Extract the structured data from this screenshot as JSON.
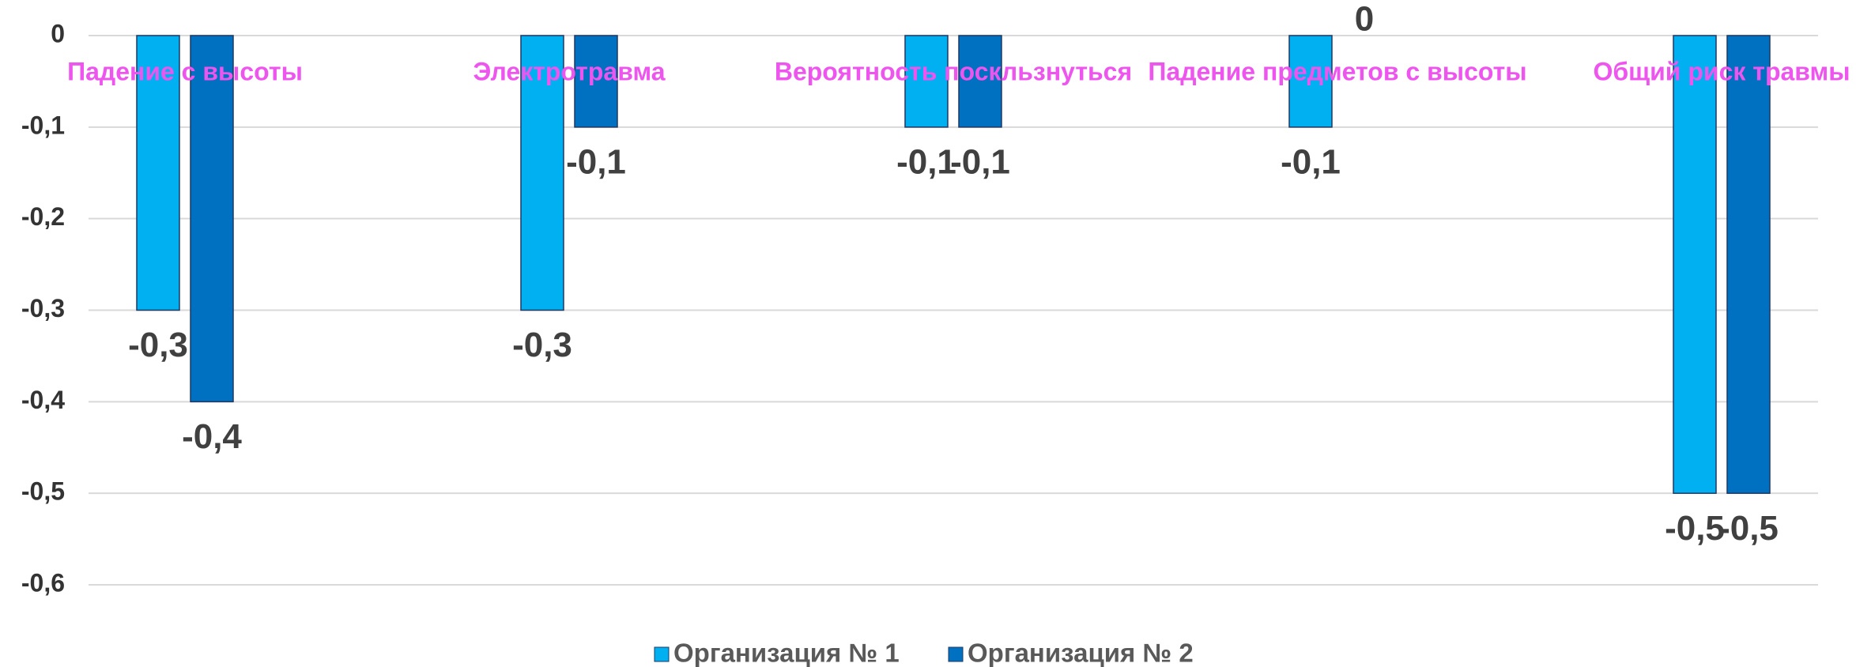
{
  "chart_data": {
    "type": "bar",
    "categories": [
      "Падение с высоты",
      "Электротравма",
      "Вероятность поскльзнуться",
      "Падение предметов с высоты",
      "Общий риск травмы"
    ],
    "series": [
      {
        "name": "Организация № 1",
        "color": "#00b0f0",
        "values": [
          -0.3,
          -0.3,
          -0.1,
          -0.1,
          -0.5
        ],
        "value_labels": [
          "-0,3",
          "-0,3",
          "-0,1",
          "-0,1",
          "-0,5"
        ]
      },
      {
        "name": "Организация № 2",
        "color": "#0070c0",
        "values": [
          -0.4,
          -0.1,
          -0.1,
          0,
          -0.5
        ],
        "value_labels": [
          "-0,4",
          "-0,1",
          "-0,1",
          "0",
          "-0,5"
        ]
      }
    ],
    "ylim": [
      -0.6,
      0
    ],
    "yticks": [
      0,
      {
        "value": -0.1,
        "label": "-0,1"
      },
      {
        "value": -0.2,
        "label": "-0,2"
      },
      {
        "value": -0.3,
        "label": "-0,3"
      },
      {
        "value": -0.4,
        "label": "-0,4"
      },
      {
        "value": -0.5,
        "label": "-0,5"
      },
      {
        "value": -0.6,
        "label": "-0,6"
      }
    ],
    "grid": true,
    "legend": "bottom"
  }
}
